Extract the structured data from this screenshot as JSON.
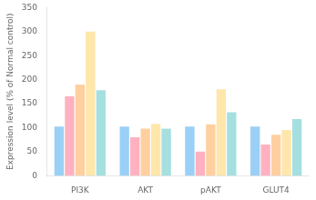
{
  "chart_data": {
    "type": "bar",
    "categories": [
      "PI3K",
      "AKT",
      "pAKT",
      "GLUT4"
    ],
    "series": [
      {
        "values": [
          102,
          102,
          102,
          102
        ]
      },
      {
        "values": [
          165,
          80,
          50,
          65
        ]
      },
      {
        "values": [
          190,
          98,
          107,
          85
        ]
      },
      {
        "values": [
          300,
          108,
          180,
          95
        ]
      },
      {
        "values": [
          178,
          98,
          132,
          118
        ]
      }
    ],
    "ylabel": "Expression level (% of Normal control)",
    "ylim": [
      0,
      350
    ],
    "yticks": [
      0,
      50,
      100,
      150,
      200,
      250,
      300,
      350
    ],
    "grid": false,
    "legend": false
  }
}
